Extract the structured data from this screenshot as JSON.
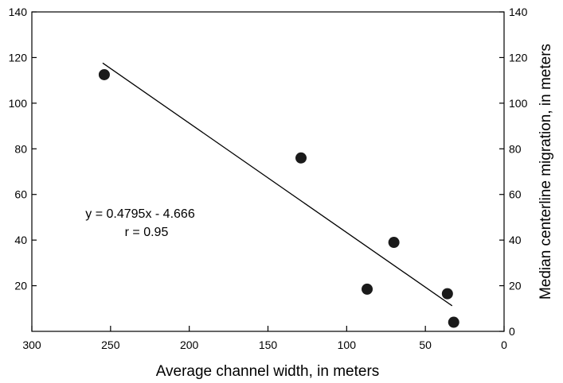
{
  "chart_data": {
    "type": "scatter",
    "title": "",
    "xlabel": "Average channel width, in meters",
    "ylabel": "Median centerline migration, in meters",
    "xlim": [
      300,
      0
    ],
    "x_reversed": true,
    "ylim": [
      0,
      140
    ],
    "x_ticks": [
      300,
      250,
      200,
      150,
      100,
      50,
      0
    ],
    "y_ticks_left": [
      20,
      40,
      60,
      80,
      100,
      120,
      140
    ],
    "y_ticks_right": [
      0,
      20,
      40,
      60,
      80,
      100,
      120,
      140
    ],
    "grid": false,
    "points": [
      {
        "x": 254,
        "y": 112.5
      },
      {
        "x": 129,
        "y": 76
      },
      {
        "x": 70,
        "y": 39
      },
      {
        "x": 87,
        "y": 18.5
      },
      {
        "x": 36,
        "y": 16.5
      },
      {
        "x": 32,
        "y": 4
      }
    ],
    "trendline": {
      "x": [
        255,
        33
      ],
      "y": [
        117.6,
        11.2
      ]
    },
    "annotations": [
      "y = 0.4795x - 4.666",
      "r = 0.95"
    ],
    "colors": {
      "points": "#1a1a1a",
      "line": "#000000"
    }
  }
}
